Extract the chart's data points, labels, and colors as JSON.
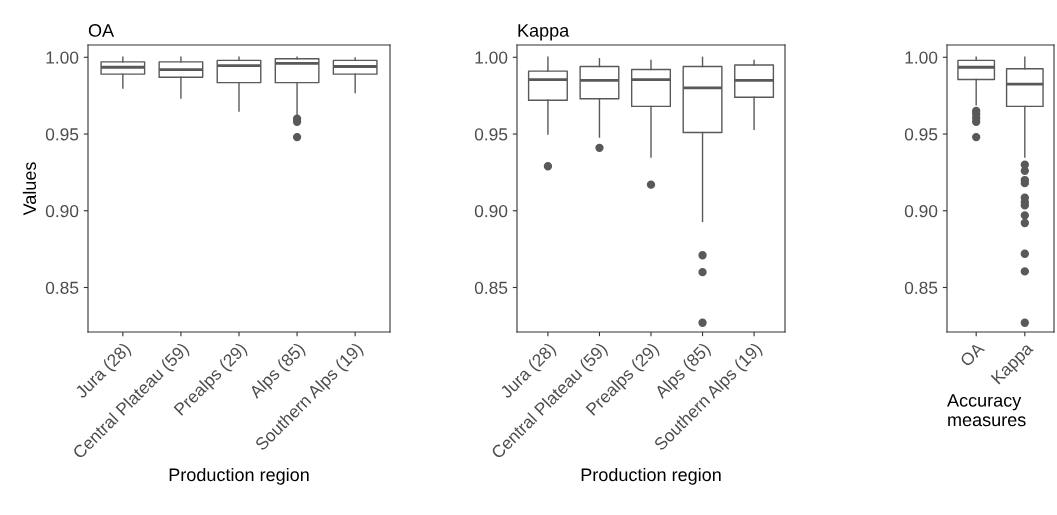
{
  "chart_data": [
    {
      "type": "box",
      "title": "OA",
      "xlabel": "Production region",
      "ylabel": "Values",
      "categories": [
        "Jura (28)",
        "Central Plateau (59)",
        "Prealps (29)",
        "Alps (85)",
        "Southern Alps (19)"
      ],
      "ylim": [
        0.821,
        1.008
      ],
      "yticks": [
        {
          "value": 0.85,
          "label": "0.85"
        },
        {
          "value": 0.9,
          "label": "0.90"
        },
        {
          "value": 0.95,
          "label": "0.95"
        },
        {
          "value": 1.0,
          "label": "1.00"
        }
      ],
      "grid": false,
      "series": [
        {
          "color": "#595959",
          "boxes": [
            {
              "low": 0.98,
              "q1": 0.989,
              "median": 0.9935,
              "q3": 0.997,
              "high": 1.0
            },
            {
              "low": 0.9735,
              "q1": 0.987,
              "median": 0.992,
              "q3": 0.997,
              "high": 1.0
            },
            {
              "low": 0.965,
              "q1": 0.9835,
              "median": 0.9945,
              "q3": 0.998,
              "high": 1.0
            },
            {
              "low": 0.961,
              "q1": 0.9835,
              "median": 0.996,
              "q3": 0.999,
              "high": 1.0,
              "outliers": [
                0.96,
                0.958,
                0.948
              ]
            },
            {
              "low": 0.977,
              "q1": 0.989,
              "median": 0.994,
              "q3": 0.998,
              "high": 0.9995
            }
          ]
        }
      ]
    },
    {
      "type": "box",
      "title": "Kappa",
      "xlabel": "Production region",
      "categories": [
        "Jura (28)",
        "Central Plateau (59)",
        "Prealps (29)",
        "Alps (85)",
        "Southern Alps (19)"
      ],
      "ylim": [
        0.821,
        1.008
      ],
      "yticks": [
        {
          "value": 0.85,
          "label": "0.85"
        },
        {
          "value": 0.9,
          "label": "0.90"
        },
        {
          "value": 0.95,
          "label": "0.95"
        },
        {
          "value": 1.0,
          "label": "1.00"
        }
      ],
      "grid": false,
      "series": [
        {
          "color": "#595959",
          "boxes": [
            {
              "low": 0.95,
              "q1": 0.972,
              "median": 0.9855,
              "q3": 0.991,
              "high": 1.0,
              "outliers": [
                0.929
              ]
            },
            {
              "low": 0.948,
              "q1": 0.973,
              "median": 0.985,
              "q3": 0.994,
              "high": 0.999,
              "outliers": [
                0.941
              ]
            },
            {
              "low": 0.935,
              "q1": 0.968,
              "median": 0.9855,
              "q3": 0.992,
              "high": 0.998,
              "outliers": [
                0.917
              ]
            },
            {
              "low": 0.893,
              "q1": 0.951,
              "median": 0.98,
              "q3": 0.994,
              "high": 1.0,
              "outliers": [
                0.871,
                0.86,
                0.827
              ]
            },
            {
              "low": 0.953,
              "q1": 0.974,
              "median": 0.985,
              "q3": 0.995,
              "high": 0.998
            }
          ]
        }
      ]
    },
    {
      "type": "box",
      "xlabel": "Accuracy\nmeasures",
      "categories": [
        "OA",
        "Kappa"
      ],
      "ylim": [
        0.821,
        1.008
      ],
      "yticks": [
        {
          "value": 0.85,
          "label": "0.85"
        },
        {
          "value": 0.9,
          "label": "0.90"
        },
        {
          "value": 0.95,
          "label": "0.95"
        },
        {
          "value": 1.0,
          "label": "1.00"
        }
      ],
      "grid": false,
      "series": [
        {
          "color": "#595959",
          "boxes": [
            {
              "low": 0.969,
              "q1": 0.9855,
              "median": 0.9935,
              "q3": 0.998,
              "high": 1.0,
              "outliers": [
                0.965,
                0.963,
                0.9605,
                0.958,
                0.948
              ]
            },
            {
              "low": 0.935,
              "q1": 0.968,
              "median": 0.9825,
              "q3": 0.9925,
              "high": 1.0,
              "outliers": [
                0.93,
                0.926,
                0.92,
                0.918,
                0.9085,
                0.9055,
                0.9035,
                0.897,
                0.892,
                0.872,
                0.8605,
                0.827
              ]
            }
          ]
        }
      ]
    }
  ]
}
